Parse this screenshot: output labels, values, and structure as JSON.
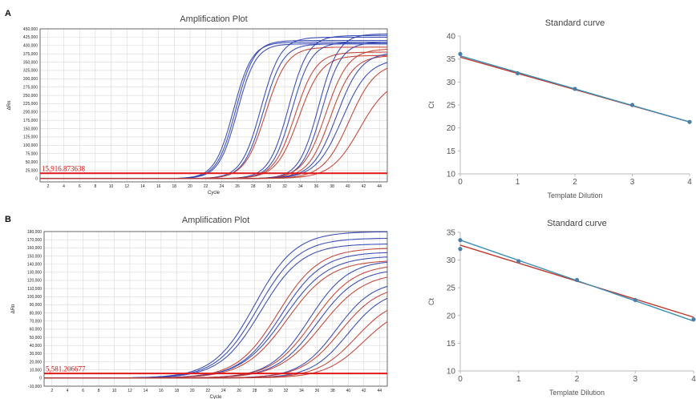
{
  "panels": [
    {
      "letter": "A"
    },
    {
      "letter": "B"
    }
  ],
  "chart_data": [
    {
      "id": "ampA",
      "type": "line",
      "title": "Amplification Plot",
      "xlabel": "Cycle",
      "ylabel": "ΔRn",
      "xlim": [
        1,
        45
      ],
      "ylim": [
        -10000,
        450000
      ],
      "x_ticks": [
        2,
        4,
        6,
        8,
        10,
        12,
        14,
        16,
        18,
        20,
        22,
        24,
        26,
        28,
        30,
        32,
        34,
        36,
        38,
        40,
        42,
        44
      ],
      "y_ticks": [
        0,
        25000,
        50000,
        75000,
        100000,
        125000,
        150000,
        175000,
        200000,
        225000,
        250000,
        275000,
        300000,
        325000,
        350000,
        375000,
        400000,
        425000,
        450000
      ],
      "y_tick_labels": [
        "0",
        "25,000",
        "50,000",
        "75,000",
        "100,000",
        "125,000",
        "150,000",
        "175,000",
        "200,000",
        "225,000",
        "250,000",
        "275,000",
        "300,000",
        "325,000",
        "350,000",
        "375,000",
        "400,000",
        "425,000",
        "450,000"
      ],
      "threshold": 15916.873638,
      "threshold_label": "15,916.873638",
      "grid": true,
      "series_colors": {
        "blue": "#2b3fb0",
        "red": "#c0392b"
      },
      "series": [
        {
          "color": "blue",
          "midpoint": 25.5,
          "plateau": 410000,
          "slope": 0.85
        },
        {
          "color": "blue",
          "midpoint": 25.8,
          "plateau": 415000,
          "slope": 0.85
        },
        {
          "color": "blue",
          "midpoint": 26.0,
          "plateau": 405000,
          "slope": 0.85
        },
        {
          "color": "blue",
          "midpoint": 29.0,
          "plateau": 425000,
          "slope": 0.8
        },
        {
          "color": "blue",
          "midpoint": 29.3,
          "plateau": 405000,
          "slope": 0.8
        },
        {
          "color": "red",
          "midpoint": 29.6,
          "plateau": 395000,
          "slope": 0.75
        },
        {
          "color": "blue",
          "midpoint": 32.5,
          "plateau": 430000,
          "slope": 0.8
        },
        {
          "color": "blue",
          "midpoint": 32.9,
          "plateau": 410000,
          "slope": 0.8
        },
        {
          "color": "red",
          "midpoint": 33.3,
          "plateau": 380000,
          "slope": 0.75
        },
        {
          "color": "red",
          "midpoint": 33.8,
          "plateau": 370000,
          "slope": 0.7
        },
        {
          "color": "blue",
          "midpoint": 36.3,
          "plateau": 435000,
          "slope": 0.8
        },
        {
          "color": "blue",
          "midpoint": 36.7,
          "plateau": 410000,
          "slope": 0.8
        },
        {
          "color": "red",
          "midpoint": 37.2,
          "plateau": 390000,
          "slope": 0.7
        },
        {
          "color": "red",
          "midpoint": 37.8,
          "plateau": 370000,
          "slope": 0.7
        },
        {
          "color": "blue",
          "midpoint": 38.6,
          "plateau": 380000,
          "slope": 0.65
        },
        {
          "color": "blue",
          "midpoint": 39.3,
          "plateau": 360000,
          "slope": 0.6
        },
        {
          "color": "red",
          "midpoint": 40.2,
          "plateau": 350000,
          "slope": 0.6
        },
        {
          "color": "red",
          "midpoint": 41.5,
          "plateau": 300000,
          "slope": 0.55
        }
      ]
    },
    {
      "id": "stdA",
      "type": "scatter",
      "title": "Standard curve",
      "xlabel": "Template Dilution",
      "ylabel": "Ct",
      "xlim": [
        0,
        4
      ],
      "ylim": [
        10,
        40
      ],
      "x_ticks": [
        0,
        1,
        2,
        3,
        4
      ],
      "y_ticks": [
        10,
        15,
        20,
        25,
        30,
        35,
        40
      ],
      "points": {
        "x": [
          0,
          1,
          2,
          3,
          4
        ],
        "y": [
          36.1,
          31.9,
          28.5,
          25.0,
          21.3
        ]
      },
      "lines": [
        {
          "color": "#c0392b",
          "x": [
            0,
            4
          ],
          "y": [
            35.4,
            21.3
          ]
        },
        {
          "color": "#3a8fb7",
          "x": [
            0,
            4
          ],
          "y": [
            35.7,
            21.3
          ]
        }
      ],
      "point_color": "#4a7fa8",
      "grid": false
    },
    {
      "id": "ampB",
      "type": "line",
      "title": "Amplification Plot",
      "xlabel": "Cycle",
      "ylabel": "ΔRn",
      "xlim": [
        1,
        45
      ],
      "ylim": [
        -10000,
        180000
      ],
      "x_ticks": [
        2,
        4,
        6,
        8,
        10,
        12,
        14,
        16,
        18,
        20,
        22,
        24,
        26,
        28,
        30,
        32,
        34,
        36,
        38,
        40,
        42,
        44
      ],
      "y_ticks": [
        -10000,
        0,
        10000,
        20000,
        30000,
        40000,
        50000,
        60000,
        70000,
        80000,
        90000,
        100000,
        110000,
        120000,
        130000,
        140000,
        150000,
        160000,
        170000,
        180000
      ],
      "y_tick_labels": [
        "-10,000",
        "0",
        "10,000",
        "20,000",
        "30,000",
        "40,000",
        "50,000",
        "60,000",
        "70,000",
        "80,000",
        "90,000",
        "100,000",
        "110,000",
        "120,000",
        "130,000",
        "140,000",
        "150,000",
        "160,000",
        "170,000",
        "180,000"
      ],
      "threshold": 5581.206677,
      "threshold_label": "5,581.206677",
      "grid": true,
      "series_colors": {
        "blue": "#2b3fb0",
        "red": "#c0392b"
      },
      "series": [
        {
          "color": "blue",
          "midpoint": 28.0,
          "plateau": 180000,
          "slope": 0.38
        },
        {
          "color": "blue",
          "midpoint": 28.4,
          "plateau": 172000,
          "slope": 0.38
        },
        {
          "color": "blue",
          "midpoint": 28.8,
          "plateau": 165000,
          "slope": 0.38
        },
        {
          "color": "red",
          "midpoint": 31.0,
          "plateau": 160000,
          "slope": 0.38
        },
        {
          "color": "blue",
          "midpoint": 31.4,
          "plateau": 155000,
          "slope": 0.38
        },
        {
          "color": "blue",
          "midpoint": 31.8,
          "plateau": 150000,
          "slope": 0.36
        },
        {
          "color": "red",
          "midpoint": 32.2,
          "plateau": 145000,
          "slope": 0.36
        },
        {
          "color": "blue",
          "midpoint": 35.0,
          "plateau": 145000,
          "slope": 0.4
        },
        {
          "color": "red",
          "midpoint": 35.5,
          "plateau": 140000,
          "slope": 0.38
        },
        {
          "color": "blue",
          "midpoint": 36.0,
          "plateau": 135000,
          "slope": 0.38
        },
        {
          "color": "red",
          "midpoint": 36.6,
          "plateau": 130000,
          "slope": 0.36
        },
        {
          "color": "blue",
          "midpoint": 38.5,
          "plateau": 120000,
          "slope": 0.42
        },
        {
          "color": "red",
          "midpoint": 39.0,
          "plateau": 115000,
          "slope": 0.4
        },
        {
          "color": "blue",
          "midpoint": 40.0,
          "plateau": 110000,
          "slope": 0.42
        },
        {
          "color": "red",
          "midpoint": 41.0,
          "plateau": 100000,
          "slope": 0.4
        },
        {
          "color": "red",
          "midpoint": 42.0,
          "plateau": 90000,
          "slope": 0.4
        }
      ]
    },
    {
      "id": "stdB",
      "type": "scatter",
      "title": "Standard curve",
      "xlabel": "Template Dilution",
      "ylabel": "Ct",
      "xlim": [
        0,
        4
      ],
      "ylim": [
        10,
        35
      ],
      "x_ticks": [
        0,
        1,
        2,
        3,
        4
      ],
      "y_ticks": [
        10,
        15,
        20,
        25,
        30,
        35
      ],
      "points": {
        "x": [
          0,
          0,
          1,
          2,
          3,
          4
        ],
        "y": [
          33.6,
          32.0,
          29.8,
          26.4,
          22.8,
          19.3
        ]
      },
      "lines": [
        {
          "color": "#c0392b",
          "x": [
            0,
            4
          ],
          "y": [
            32.7,
            19.7
          ]
        },
        {
          "color": "#3a8fb7",
          "x": [
            0,
            4
          ],
          "y": [
            33.6,
            19.0
          ]
        }
      ],
      "point_color": "#4a7fa8",
      "grid": false
    }
  ]
}
